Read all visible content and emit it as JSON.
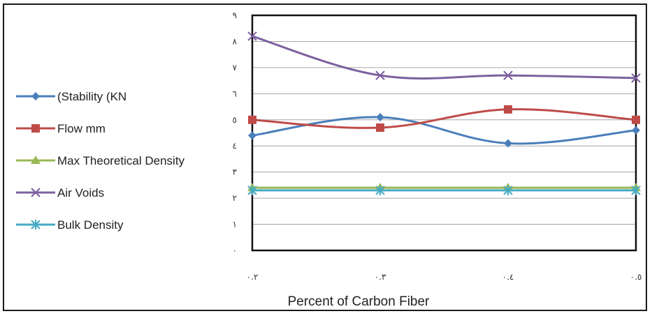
{
  "chart_data": {
    "type": "line",
    "title": "",
    "xlabel": "Percent of Carbon Fiber",
    "ylabel": "",
    "x": [
      "٠.٢",
      "٠.٣",
      "٠.٤",
      "٠.٥"
    ],
    "y_ticks": [
      "٠",
      "١",
      "٢",
      "٣",
      "٤",
      "٥",
      "٦",
      "٧",
      "٨",
      "٩"
    ],
    "ylim": [
      0,
      9
    ],
    "grid": true,
    "legend_position": "left",
    "series": [
      {
        "name": "(Stability (KN",
        "values": [
          4.4,
          5.1,
          4.1,
          4.6
        ],
        "color": "#4a7ebb",
        "marker": "diamond"
      },
      {
        "name": "Flow mm",
        "values": [
          5.0,
          4.7,
          5.4,
          5.0
        ],
        "color": "#be4b48",
        "marker": "square"
      },
      {
        "name": "Max Theoretical Density",
        "values": [
          2.4,
          2.4,
          2.4,
          2.4
        ],
        "color": "#98b954",
        "marker": "triangle"
      },
      {
        "name": "Air Voids",
        "values": [
          8.2,
          6.7,
          6.7,
          6.6
        ],
        "color": "#7d60a0",
        "marker": "x"
      },
      {
        "name": "Bulk Density",
        "values": [
          2.3,
          2.3,
          2.3,
          2.3
        ],
        "color": "#46aac4",
        "marker": "star"
      }
    ]
  }
}
